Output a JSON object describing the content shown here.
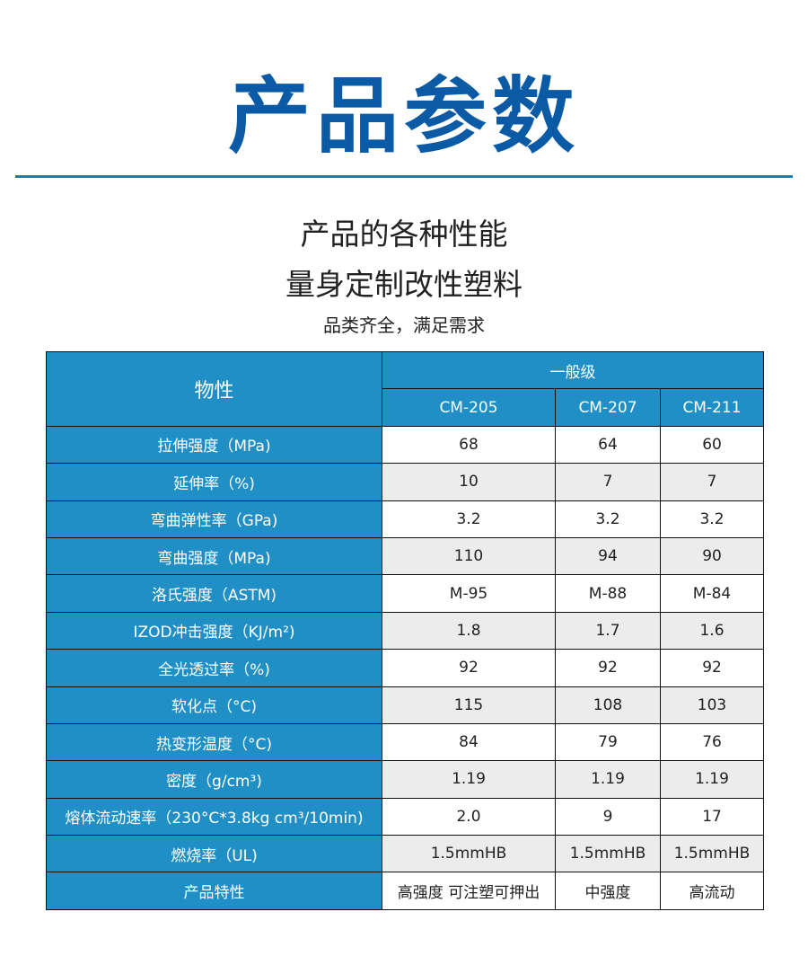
{
  "title": "产品参数",
  "subtitle_1": "产品的各种性能",
  "subtitle_2": "量身定制改性塑料",
  "subtitle_3": "品类齐全，满足需求",
  "table": {
    "property_header": "物性",
    "group_header": "一般级",
    "models": [
      "CM-205",
      "CM-207",
      "CM-211"
    ],
    "rows": [
      {
        "property": "拉伸强度（MPa)",
        "values": [
          "68",
          "64",
          "60"
        ]
      },
      {
        "property": "延伸率（%)",
        "values": [
          "10",
          "7",
          "7"
        ]
      },
      {
        "property": "弯曲弹性率（GPa)",
        "values": [
          "3.2",
          "3.2",
          "3.2"
        ]
      },
      {
        "property": "弯曲强度（MPa)",
        "values": [
          "110",
          "94",
          "90"
        ]
      },
      {
        "property": "洛氏强度（ASTM)",
        "values": [
          "M-95",
          "M-88",
          "M-84"
        ]
      },
      {
        "property": "IZOD冲击强度（KJ/m²)",
        "values": [
          "1.8",
          "1.7",
          "1.6"
        ]
      },
      {
        "property": "全光透过率（%)",
        "values": [
          "92",
          "92",
          "92"
        ]
      },
      {
        "property": "软化点（°C)",
        "values": [
          "115",
          "108",
          "103"
        ]
      },
      {
        "property": "热变形温度（°C)",
        "values": [
          "84",
          "79",
          "76"
        ]
      },
      {
        "property": "密度（g/cm³)",
        "values": [
          "1.19",
          "1.19",
          "1.19"
        ]
      },
      {
        "property": "熔体流动速率（230°C*3.8kg cm³/10min)",
        "values": [
          "2.0",
          "9",
          "17"
        ]
      },
      {
        "property": "燃烧率（UL)",
        "values": [
          "1.5mmHB",
          "1.5mmHB",
          "1.5mmHB"
        ]
      },
      {
        "property": "产品特性",
        "values": [
          "高强度 可注塑可押出",
          "中强度",
          "高流动"
        ]
      }
    ]
  },
  "colors": {
    "title": "#0b5aa6",
    "header": "#208fc6",
    "rule": "#1a7fb8",
    "alt_row": "#ececec"
  }
}
